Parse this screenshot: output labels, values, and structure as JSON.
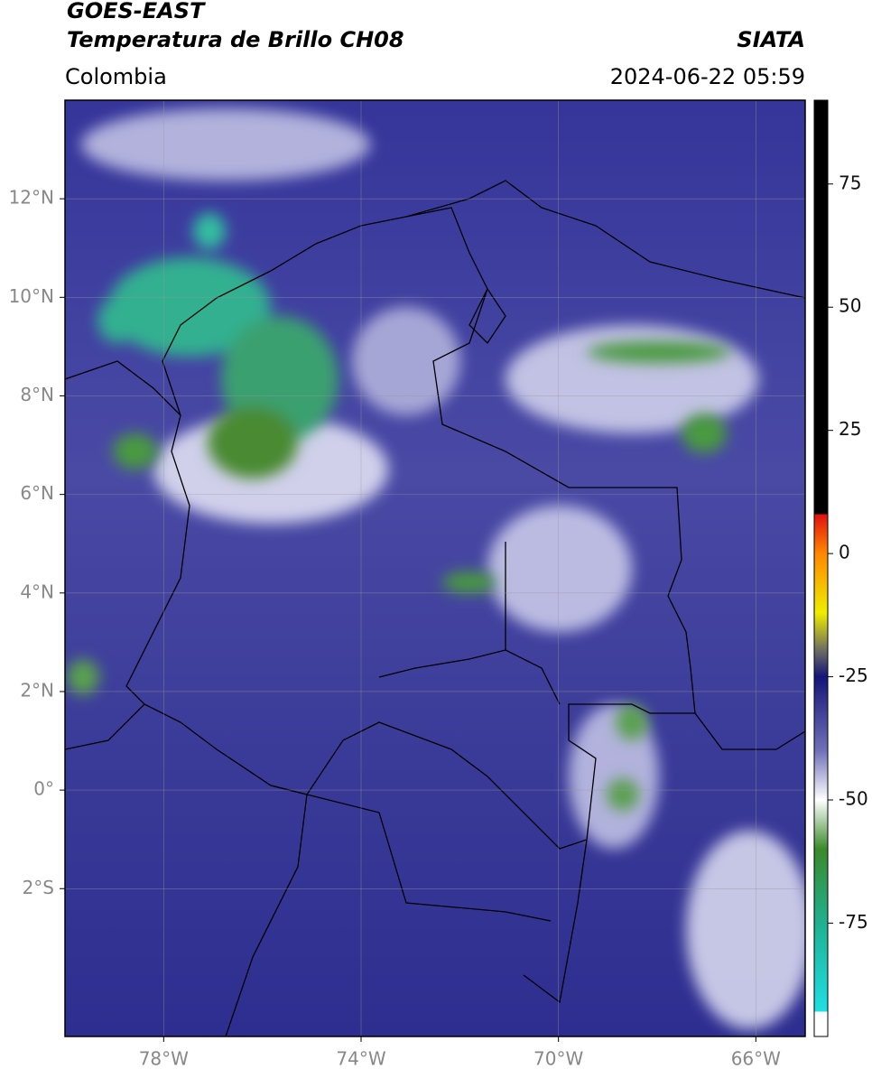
{
  "header": {
    "satellite": "GOES-EAST",
    "product": "Temperatura de Brillo CH08",
    "source": "SIATA",
    "region": "Colombia",
    "datetime": "2024-06-22 05:59"
  },
  "map": {
    "xlim": [
      -80,
      -65
    ],
    "ylim": [
      -5,
      14
    ],
    "xticks": [
      {
        "value": -78,
        "label": "78°W"
      },
      {
        "value": -74,
        "label": "74°W"
      },
      {
        "value": -70,
        "label": "70°W"
      },
      {
        "value": -66,
        "label": "66°W"
      }
    ],
    "yticks": [
      {
        "value": 12,
        "label": "12°N"
      },
      {
        "value": 10,
        "label": "10°N"
      },
      {
        "value": 8,
        "label": "8°N"
      },
      {
        "value": 6,
        "label": "6°N"
      },
      {
        "value": 4,
        "label": "4°N"
      },
      {
        "value": 2,
        "label": "2°N"
      },
      {
        "value": 0,
        "label": "0°"
      },
      {
        "value": -2,
        "label": "2°S"
      }
    ],
    "grid": true
  },
  "colorbar": {
    "lim": [
      -98,
      92
    ],
    "ticks": [
      75,
      50,
      25,
      0,
      -25,
      -50,
      -75
    ],
    "colormap": [
      {
        "value": 92,
        "color": "#000000"
      },
      {
        "value": 8,
        "color": "#000000"
      },
      {
        "value": 8,
        "color": "#e01010"
      },
      {
        "value": 0,
        "color": "#ff8800"
      },
      {
        "value": -12,
        "color": "#eeee00"
      },
      {
        "value": -20,
        "color": "#666666"
      },
      {
        "value": -25,
        "color": "#15157a"
      },
      {
        "value": -40,
        "color": "#7070b8"
      },
      {
        "value": -50,
        "color": "#ffffff"
      },
      {
        "value": -60,
        "color": "#3a8a2a"
      },
      {
        "value": -75,
        "color": "#20b090"
      },
      {
        "value": -90,
        "color": "#20d8d8"
      },
      {
        "value": -93,
        "color": "#20e0e0"
      },
      {
        "value": -93,
        "color": "#ffffff"
      },
      {
        "value": -98,
        "color": "#ffffff"
      }
    ]
  }
}
